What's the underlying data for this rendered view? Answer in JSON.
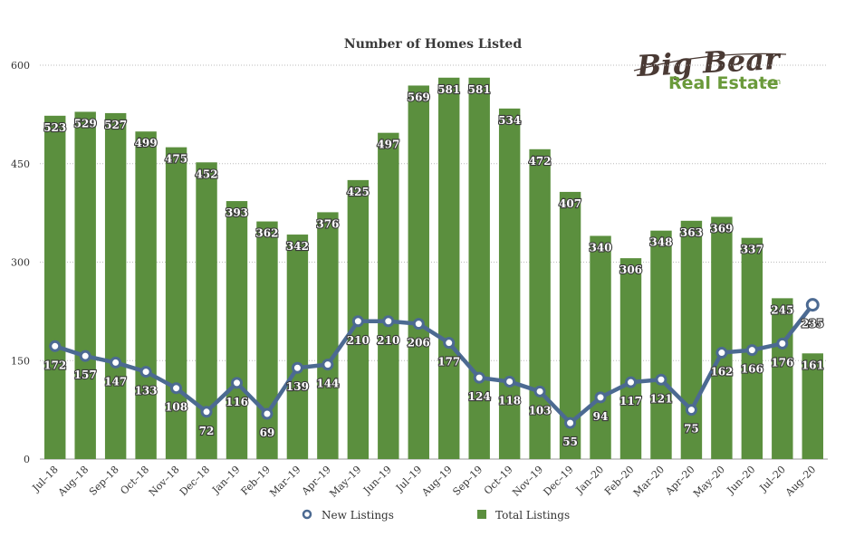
{
  "logo": {
    "line1": "Big Bear",
    "line2": "Real Estate",
    "suffix": ".com"
  },
  "chart_data": {
    "type": "bar",
    "title": "Number of Homes Listed",
    "xlabel": "",
    "ylabel": "",
    "ylim": [
      0,
      600
    ],
    "yticks": [
      0,
      150,
      300,
      450,
      600
    ],
    "grid": true,
    "legend_placement": "bottom",
    "categories": [
      "Jul–18",
      "Aug–18",
      "Sep–18",
      "Oct–18",
      "Nov–18",
      "Dec–18",
      "Jan–19",
      "Feb–19",
      "Mar–19",
      "Apr–19",
      "May–19",
      "Jun–19",
      "Jul–19",
      "Aug–19",
      "Sep–19",
      "Oct–19",
      "Nov–19",
      "Dec–19",
      "Jan–20",
      "Feb–20",
      "Mar–20",
      "Apr–20",
      "May–20",
      "Jun–20",
      "Jul–20",
      "Aug–20"
    ],
    "series": [
      {
        "name": "Total Listings",
        "type": "bar",
        "color": "#5b8f3e",
        "values": [
          523,
          529,
          527,
          499,
          475,
          452,
          393,
          362,
          342,
          376,
          425,
          497,
          569,
          581,
          581,
          534,
          472,
          407,
          340,
          306,
          348,
          363,
          369,
          337,
          245,
          161
        ]
      },
      {
        "name": "New Listings",
        "type": "line",
        "color": "#4c6a92",
        "values": [
          172,
          157,
          147,
          133,
          108,
          72,
          116,
          69,
          139,
          144,
          210,
          210,
          206,
          177,
          124,
          118,
          103,
          55,
          94,
          117,
          121,
          75,
          162,
          166,
          176,
          235
        ]
      }
    ]
  }
}
